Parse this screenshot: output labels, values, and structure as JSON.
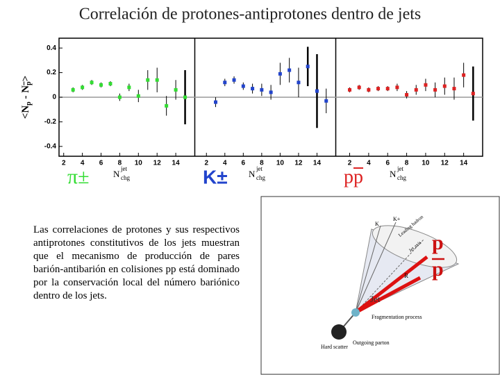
{
  "title": "Correlación de protones-antiprotones dentro de jets",
  "chart_data": [
    {
      "type": "scatter",
      "label": "π±",
      "xlabel": "N",
      "xlabel_sup": "jet",
      "xlabel_sub": "chg",
      "ylabel": [
        "<N",
        "p",
        " - N",
        "p",
        ">"
      ],
      "xlim": [
        1.5,
        16
      ],
      "ylim": [
        -0.48,
        0.48
      ],
      "xticks": [
        2,
        4,
        6,
        8,
        10,
        12,
        14
      ],
      "yticks": [
        0.4,
        0.2,
        0,
        -0.2,
        -0.4
      ],
      "hline": 0,
      "series": [
        {
          "color": "#33dd33",
          "x": [
            3,
            4,
            5,
            6,
            7,
            8,
            9,
            10,
            11,
            12,
            13,
            14,
            15
          ],
          "values": [
            0.06,
            0.08,
            0.12,
            0.1,
            0.11,
            0.0,
            0.08,
            0.01,
            0.14,
            0.14,
            -0.07,
            0.06,
            0.0
          ],
          "errors": [
            0.02,
            0.02,
            0.02,
            0.02,
            0.02,
            0.03,
            0.03,
            0.05,
            0.08,
            0.1,
            0.08,
            0.08,
            0.22
          ]
        }
      ]
    },
    {
      "type": "scatter",
      "label": "K±",
      "xlabel": "N",
      "xlabel_sup": "jet",
      "xlabel_sub": "chg",
      "xlim": [
        0.7,
        16
      ],
      "ylim": [
        -0.48,
        0.48
      ],
      "xticks": [
        2,
        4,
        6,
        8,
        10,
        12,
        14
      ],
      "hline": 0,
      "series": [
        {
          "color": "#2244cc",
          "x": [
            3,
            4,
            5,
            6,
            7,
            8,
            9,
            10,
            11,
            12,
            13,
            14,
            15
          ],
          "values": [
            -0.04,
            0.12,
            0.14,
            0.09,
            0.07,
            0.06,
            0.04,
            0.19,
            0.22,
            0.12,
            0.25,
            0.05,
            -0.03
          ],
          "errors": [
            0.04,
            0.03,
            0.03,
            0.03,
            0.04,
            0.05,
            0.06,
            0.09,
            0.1,
            0.12,
            0.16,
            0.3,
            0.1
          ]
        }
      ]
    },
    {
      "type": "scatter",
      "label": "pp",
      "xlabel": "N",
      "xlabel_sup": "jet",
      "xlabel_sub": "chg",
      "xlim": [
        0.5,
        16
      ],
      "ylim": [
        -0.48,
        0.48
      ],
      "xticks": [
        2,
        4,
        6,
        8,
        10,
        12,
        14
      ],
      "hline": 0,
      "series": [
        {
          "color": "#dd2222",
          "x": [
            2,
            3,
            4,
            5,
            6,
            7,
            8,
            9,
            10,
            11,
            12,
            13,
            14,
            15
          ],
          "values": [
            0.06,
            0.08,
            0.06,
            0.07,
            0.07,
            0.08,
            0.02,
            0.06,
            0.1,
            0.06,
            0.09,
            0.07,
            0.18,
            0.03
          ],
          "errors": [
            0.02,
            0.02,
            0.02,
            0.02,
            0.02,
            0.03,
            0.03,
            0.04,
            0.05,
            0.06,
            0.07,
            0.09,
            0.1,
            0.22
          ]
        }
      ]
    }
  ],
  "paragraph": "Las correlaciones de protones y sus respectivos antiprotones constitutivos de los jets muestran que el mecanismo de producción de pares barión-antibarión en colisiones pp está dominado por la conservación local del número bariónico dentro de los jets.",
  "diagram": {
    "labels": {
      "k": "K",
      "kplus": "K+",
      "leading": "Leading hadron",
      "axis": "Jet axis",
      "r": "R",
      "jet": "Jet",
      "frag": "Fragmentation process",
      "parton": "Outgoing parton",
      "hard": "Hard scatter",
      "p": "p",
      "pbar": "p"
    }
  }
}
